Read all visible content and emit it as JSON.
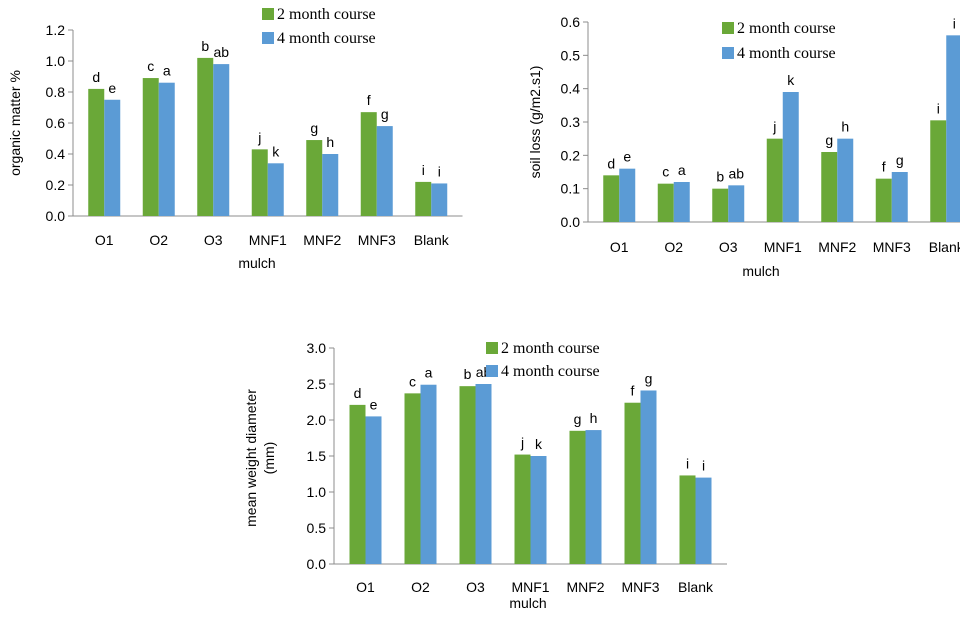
{
  "colors": {
    "series_2_month": "#6aa838",
    "series_4_month": "#5b9bd5",
    "axis": "#8c8c8c"
  },
  "chart_data": [
    {
      "type": "bar",
      "categories": [
        "O1",
        "O2",
        "O3",
        "MNF1",
        "MNF2",
        "MNF3",
        "Blank"
      ],
      "series": [
        {
          "name": "2 month course",
          "values": [
            0.82,
            0.89,
            1.02,
            0.43,
            0.49,
            0.67,
            0.22
          ],
          "labels": [
            "d",
            "c",
            "b",
            "j",
            "g",
            "f",
            "i"
          ]
        },
        {
          "name": "4 month course",
          "values": [
            0.75,
            0.86,
            0.98,
            0.34,
            0.4,
            0.58,
            0.21
          ],
          "labels": [
            "e",
            "a",
            "ab",
            "k",
            "h",
            "g",
            "i"
          ]
        }
      ],
      "xlabel": "mulch",
      "ylabel": "organic matter %",
      "ylim": [
        0,
        1.2
      ],
      "yticks": [
        "0.0",
        "0.2",
        "0.4",
        "0.6",
        "0.8",
        "1.0",
        "1.2"
      ],
      "grid": false,
      "legend": "top-right"
    },
    {
      "type": "bar",
      "categories": [
        "O1",
        "O2",
        "O3",
        "MNF1",
        "MNF2",
        "MNF3",
        "Blank"
      ],
      "series": [
        {
          "name": "2 month course",
          "values": [
            0.14,
            0.115,
            0.1,
            0.25,
            0.21,
            0.13,
            0.305
          ],
          "labels": [
            "d",
            "c",
            "b",
            "j",
            "g",
            "f",
            "i"
          ]
        },
        {
          "name": "4 month course",
          "values": [
            0.16,
            0.12,
            0.11,
            0.39,
            0.25,
            0.15,
            0.56
          ],
          "labels": [
            "e",
            "a",
            "ab",
            "k",
            "h",
            "g",
            "i"
          ]
        }
      ],
      "xlabel": "mulch",
      "ylabel": "soil loss (g/m2.s1)",
      "ylim": [
        0,
        0.6
      ],
      "yticks": [
        "0.0",
        "0.1",
        "0.2",
        "0.3",
        "0.4",
        "0.5",
        "0.6"
      ],
      "grid": false,
      "legend": "top-right"
    },
    {
      "type": "bar",
      "categories": [
        "O1",
        "O2",
        "O3",
        "MNF1",
        "MNF2",
        "MNF3",
        "Blank"
      ],
      "series": [
        {
          "name": "2 month course",
          "values": [
            2.21,
            2.37,
            2.47,
            1.52,
            1.85,
            2.24,
            1.23
          ],
          "labels": [
            "d",
            "c",
            "b",
            "j",
            "g",
            "f",
            "i"
          ]
        },
        {
          "name": "4 month course",
          "values": [
            2.05,
            2.49,
            2.5,
            1.5,
            1.86,
            2.41,
            1.2
          ],
          "labels": [
            "e",
            "a",
            "ab",
            "k",
            "h",
            "g",
            "i"
          ]
        }
      ],
      "xlabel": "mulch",
      "ylabel": "mean weight diameter",
      "ylabel_line2": "(mm)",
      "ylim": [
        0,
        3
      ],
      "yticks": [
        "0.0",
        "0.5",
        "1.0",
        "1.5",
        "2.0",
        "2.5",
        "3.0"
      ],
      "grid": false,
      "legend": "top-center"
    }
  ]
}
